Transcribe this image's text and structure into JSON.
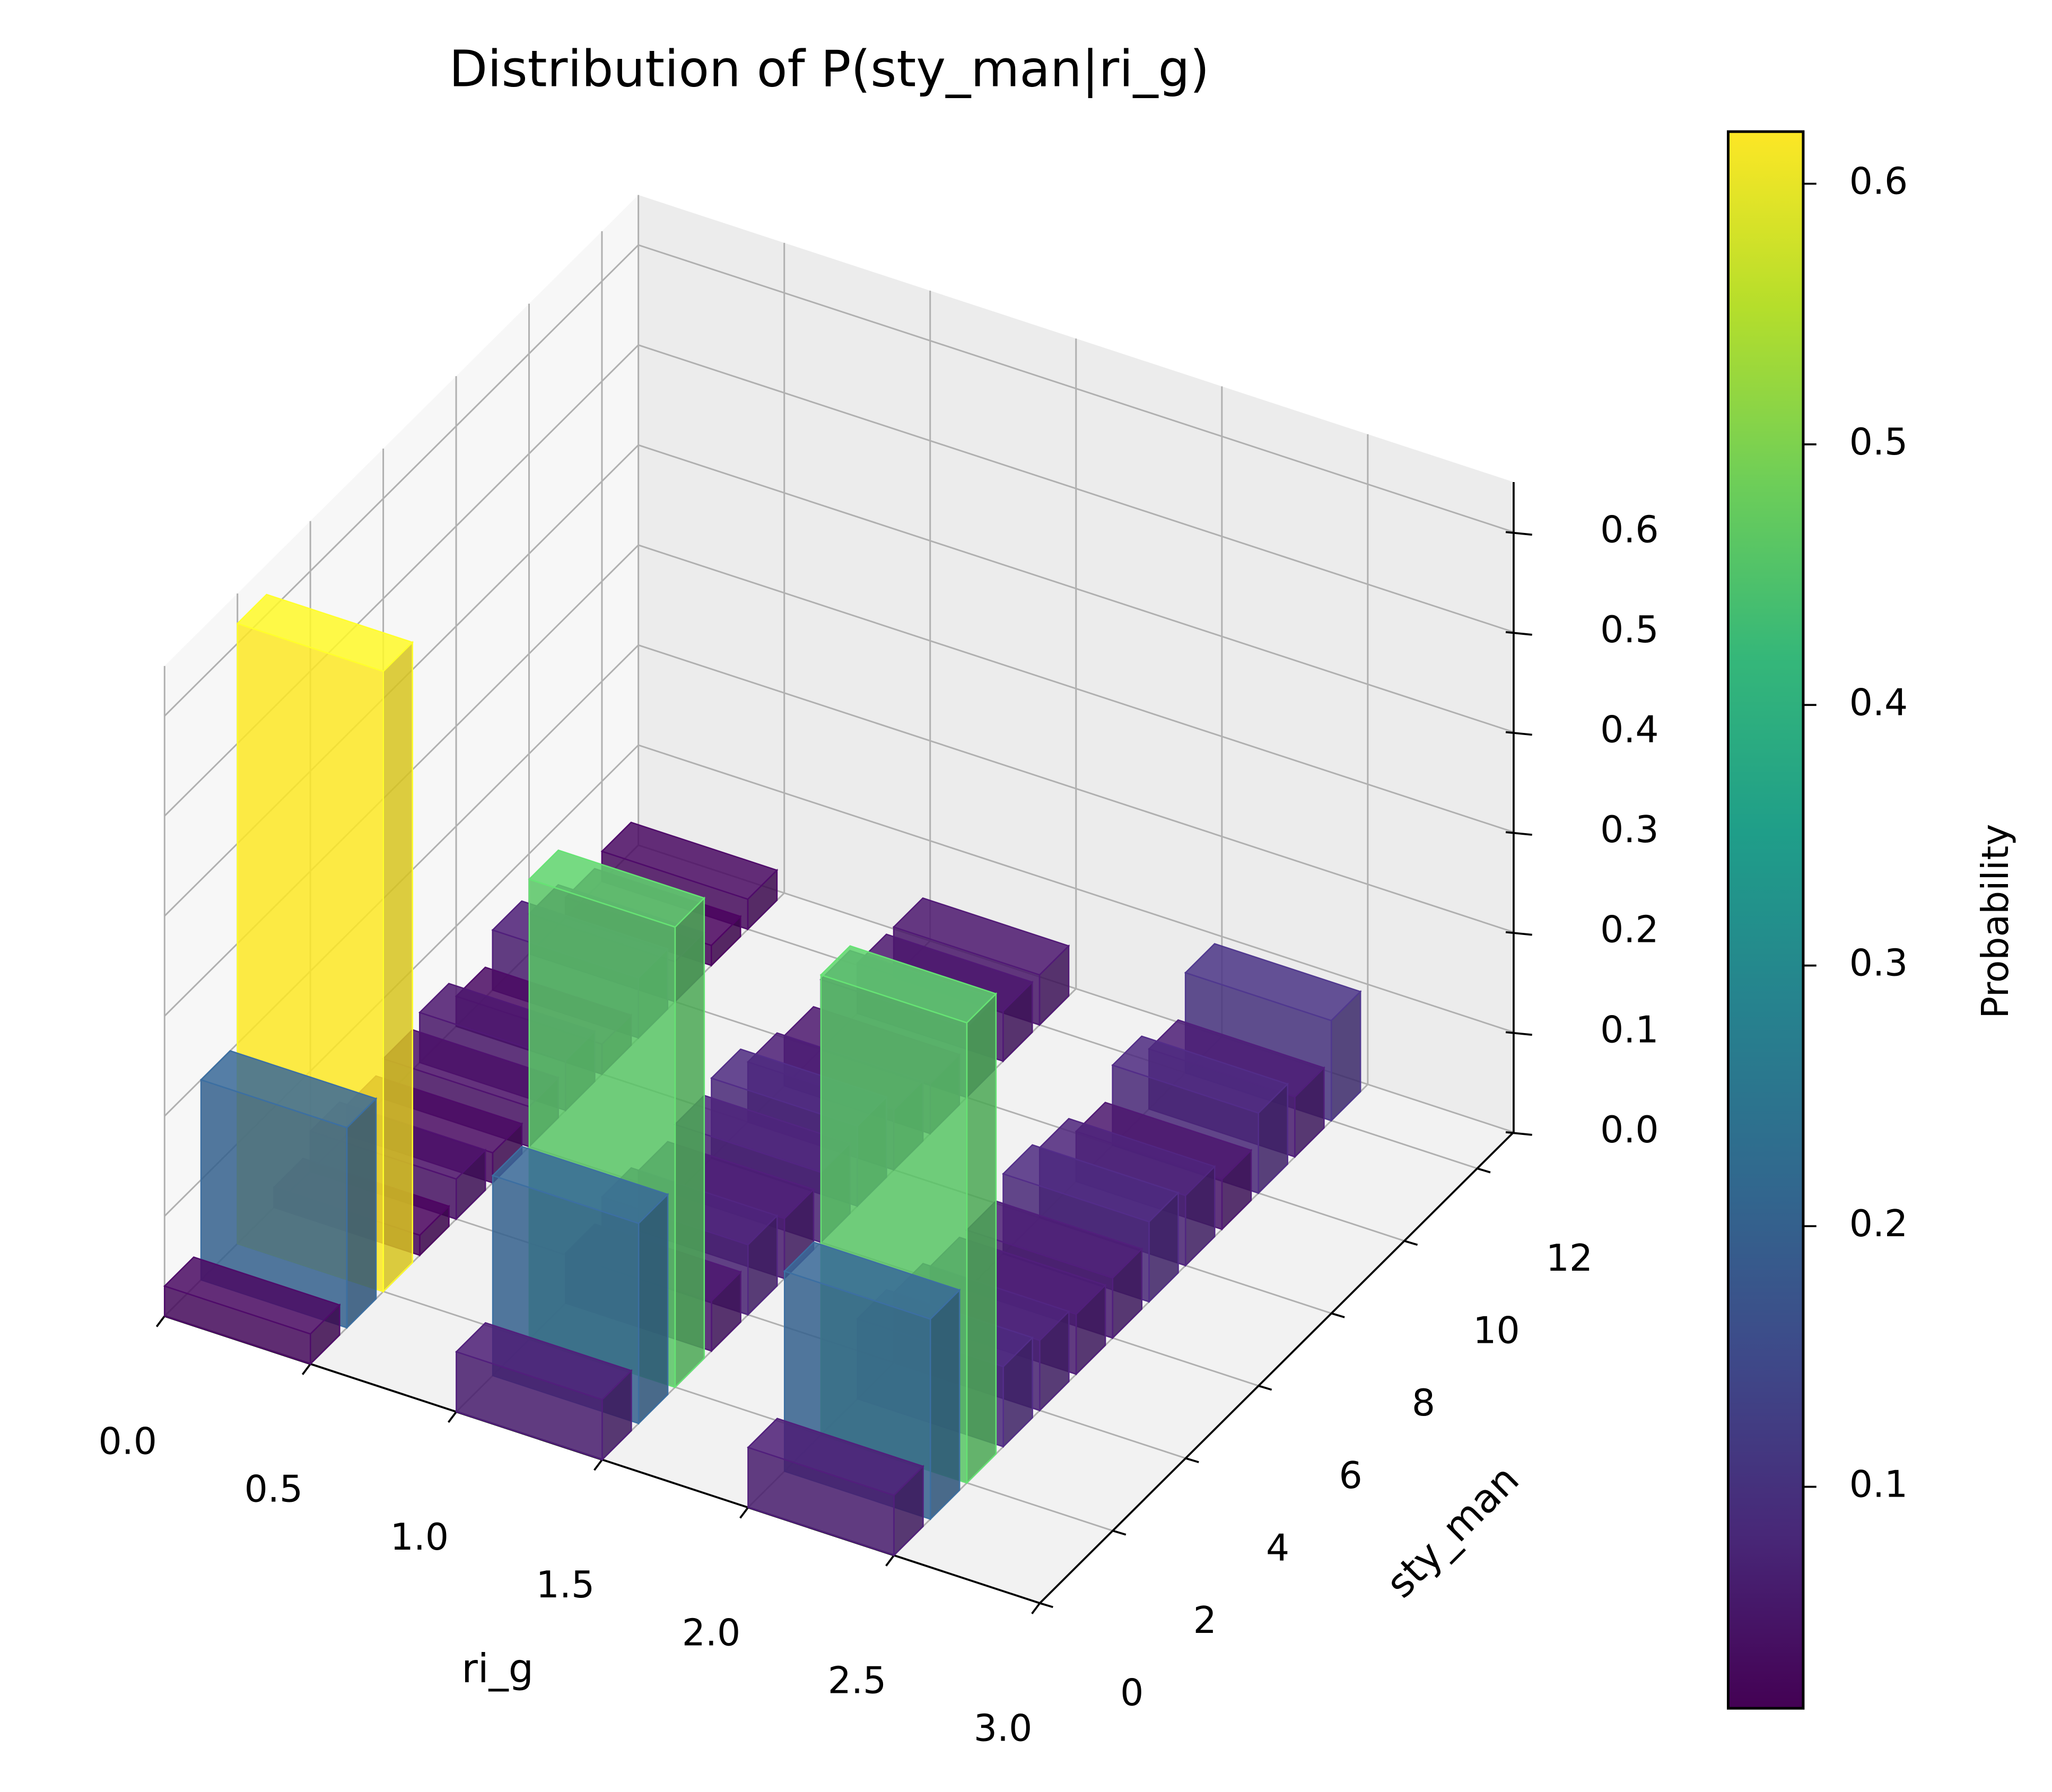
{
  "chart_data": {
    "type": "bar3d",
    "title": "Distribution of P(sty_man|ri_g)",
    "x_label": "ri_g",
    "y_label": "sty_man",
    "colorbar_label": "Probability",
    "x": [
      0,
      1,
      2
    ],
    "y": [
      0,
      1,
      2,
      3,
      4,
      5,
      6,
      7,
      8,
      9,
      10,
      11,
      12
    ],
    "values": [
      [
        0.03,
        0.2,
        0.62,
        0.02,
        0.04,
        0.03,
        0.04,
        0.05,
        0.03,
        0.06,
        0.04,
        0.02,
        0.03
      ],
      [
        0.06,
        0.2,
        0.46,
        0.05,
        0.07,
        0.06,
        0.07,
        0.08,
        0.06,
        0.05,
        0.07,
        0.05,
        0.05
      ],
      [
        0.06,
        0.2,
        0.46,
        0.08,
        0.07,
        0.06,
        0.06,
        0.08,
        0.07,
        0.05,
        0.08,
        0.06,
        0.1
      ]
    ],
    "xlim": [
      0,
      3
    ],
    "xticks": [
      {
        "value": 0,
        "label": "0.0"
      },
      0.5,
      {
        "value": 1,
        "label": "1.0"
      },
      1.5,
      {
        "value": 2,
        "label": "2.0"
      },
      2.5,
      {
        "value": 3,
        "label": "3.0"
      }
    ],
    "ylim": [
      0,
      13
    ],
    "yticks": [
      0,
      2,
      4,
      6,
      8,
      10,
      12
    ],
    "zlim": [
      0,
      0.65
    ],
    "zticks": [
      {
        "value": 0,
        "label": "0.0"
      },
      0.1,
      0.2,
      0.3,
      0.4,
      0.5,
      0.6
    ],
    "colormap": [
      "#440154",
      "#482878",
      "#3e4989",
      "#31688e",
      "#26828e",
      "#1f9e89",
      "#35b779",
      "#6ece58",
      "#b5de2b",
      "#fde725"
    ],
    "clim": [
      0.015,
      0.62
    ],
    "cticks": [
      0.1,
      0.2,
      0.3,
      0.4,
      0.5,
      0.6
    ],
    "grid": true
  }
}
